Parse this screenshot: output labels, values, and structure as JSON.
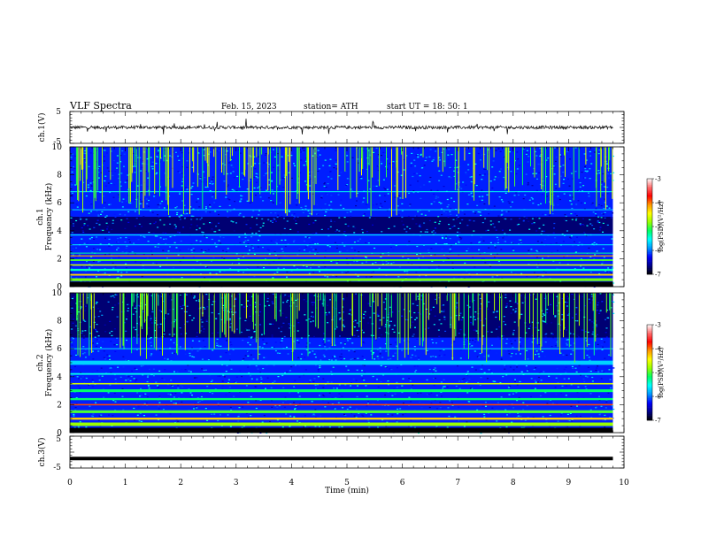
{
  "header": {
    "title": "VLF  Spectra",
    "date": "Feb. 15, 2023",
    "station": "station= ATH",
    "start_ut": "start  UT  =    18: 50: 1"
  },
  "colors": {
    "spectrogram_scale": [
      "#000000",
      "#00008c",
      "#0000ff",
      "#0096ff",
      "#00ffff",
      "#00ff64",
      "#96ff00",
      "#ffff00",
      "#ff9600",
      "#ff0000",
      "#ff6e6e",
      "#ffffff"
    ]
  },
  "chart_data": [
    {
      "type": "line",
      "panel": "ch1-waveform",
      "ylabel": "ch.1(V)",
      "ylim": [
        -5,
        5
      ],
      "y_tick_labels": [
        "5",
        "-5"
      ],
      "xlim": [
        0,
        10
      ],
      "trace_x_range": [
        0,
        9.8
      ],
      "trace_level": 0,
      "trace_noise_amplitude": 0.5
    },
    {
      "type": "heatmap",
      "panel": "ch1-spectrogram",
      "ylabel": "Frequency (kHz)",
      "channel_label": "ch.1",
      "ylim": [
        0,
        10
      ],
      "y_tick_labels": [
        "0",
        "2",
        "4",
        "6",
        "8",
        "10"
      ],
      "xlim": [
        0,
        10
      ],
      "data_x_range": [
        0,
        9.8
      ],
      "colorbar": {
        "label": "log(PSD)(V²/Hz)",
        "range": [
          -7,
          -3
        ],
        "tick_labels": [
          "-3",
          "-4",
          "-5",
          "-6",
          "-7"
        ]
      },
      "bands_khz": [
        {
          "f": 0.5,
          "w": 0.2,
          "level": -4.9
        },
        {
          "f": 0.85,
          "w": 0.12,
          "level": -4.3
        },
        {
          "f": 1.2,
          "w": 0.15,
          "level": -5.4
        },
        {
          "f": 1.55,
          "w": 0.1,
          "level": -4.6
        },
        {
          "f": 1.9,
          "w": 0.12,
          "level": -5.0
        },
        {
          "f": 2.2,
          "w": 0.08,
          "level": -4.1
        },
        {
          "f": 2.4,
          "w": 0.06,
          "level": -5.3
        },
        {
          "f": 3.0,
          "w": 0.05,
          "level": -5.6
        },
        {
          "f": 3.7,
          "w": 0.05,
          "level": -5.5
        },
        {
          "f": 5.5,
          "w": 0.08,
          "level": -5.8
        },
        {
          "f": 6.8,
          "w": 0.05,
          "level": -5.5
        }
      ],
      "dark_band_khz": [
        3.8,
        5.0
      ],
      "spike_level": -5.2
    },
    {
      "type": "heatmap",
      "panel": "ch2-spectrogram",
      "ylabel": "Frequency (kHz)",
      "channel_label": "ch.2",
      "ylim": [
        0,
        10
      ],
      "y_tick_labels": [
        "0",
        "2",
        "4",
        "6",
        "8",
        "10"
      ],
      "xlim": [
        0,
        10
      ],
      "data_x_range": [
        0,
        9.8
      ],
      "colorbar": {
        "label": "log(PSD)(V²/Hz)",
        "range": [
          -7,
          -3
        ],
        "tick_labels": [
          "-3",
          "-4",
          "-5",
          "-6",
          "-7"
        ]
      },
      "bands_khz": [
        {
          "f": 0.6,
          "w": 0.25,
          "level": -4.8
        },
        {
          "f": 1.0,
          "w": 0.15,
          "level": -4.3
        },
        {
          "f": 1.5,
          "w": 0.2,
          "level": -5.0
        },
        {
          "f": 2.0,
          "w": 0.1,
          "level": -3.9
        },
        {
          "f": 2.4,
          "w": 0.15,
          "level": -5.2
        },
        {
          "f": 3.0,
          "w": 0.2,
          "level": -5.2
        },
        {
          "f": 3.5,
          "w": 0.1,
          "level": -4.6
        },
        {
          "f": 4.2,
          "w": 0.12,
          "level": -5.5
        },
        {
          "f": 5.0,
          "w": 0.3,
          "level": -5.7
        },
        {
          "f": 6.0,
          "w": 0.1,
          "level": -5.9
        }
      ],
      "dark_band_khz": [
        6.8,
        10
      ],
      "spike_level": -5.3
    },
    {
      "type": "line",
      "panel": "ch3-waveform",
      "ylabel": "ch.3(V)",
      "xlabel": "Time  (min)",
      "ylim": [
        -5,
        5
      ],
      "y_tick_labels": [
        "5",
        "-5"
      ],
      "xlim": [
        0,
        10
      ],
      "x_tick_labels": [
        "0",
        "1",
        "2",
        "3",
        "4",
        "5",
        "6",
        "7",
        "8",
        "9",
        "10"
      ],
      "trace_x_range": [
        0,
        9.8
      ],
      "trace_level": -2
    }
  ]
}
